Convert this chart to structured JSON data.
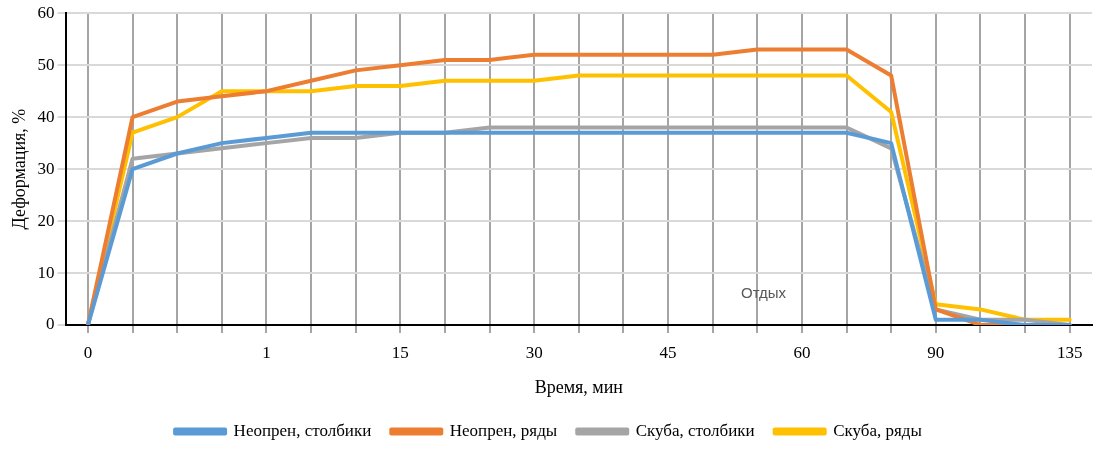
{
  "chart_data": {
    "type": "line",
    "xlabel": "Время, мин",
    "ylabel": "Деформация, %",
    "categories": [
      "0",
      null,
      null,
      null,
      "1",
      null,
      null,
      "15",
      null,
      null,
      "30",
      null,
      null,
      "45",
      null,
      null,
      "60",
      null,
      null,
      "90",
      null,
      null,
      "135"
    ],
    "series": [
      {
        "name": "Неопрен, столбики",
        "color": "#5b9bd5",
        "values": [
          0,
          30,
          33,
          35,
          36,
          37,
          37,
          37,
          37,
          37,
          37,
          37,
          37,
          37,
          37,
          37,
          37,
          37,
          35,
          1,
          1,
          0,
          0
        ]
      },
      {
        "name": "Неопрен, ряды",
        "color": "#ed7d31",
        "values": [
          0,
          40,
          43,
          44,
          45,
          47,
          49,
          50,
          51,
          51,
          52,
          52,
          52,
          52,
          52,
          53,
          53,
          53,
          48,
          3,
          0,
          0,
          0
        ]
      },
      {
        "name": "Скуба, столбики",
        "color": "#a5a5a5",
        "values": [
          0,
          32,
          33,
          34,
          35,
          36,
          36,
          37,
          37,
          38,
          38,
          38,
          38,
          38,
          38,
          38,
          38,
          38,
          34,
          3,
          1,
          1,
          0
        ]
      },
      {
        "name": "Скуба, ряды",
        "color": "#ffc000",
        "values": [
          0,
          37,
          40,
          45,
          45,
          45,
          46,
          46,
          47,
          47,
          47,
          48,
          48,
          48,
          48,
          48,
          48,
          48,
          41,
          4,
          3,
          1,
          1
        ]
      }
    ],
    "ylim": [
      0,
      60
    ],
    "yticks": [
      0,
      10,
      20,
      30,
      40,
      50,
      60
    ],
    "grid": true,
    "legend": "bottom",
    "marker": "none",
    "line_style": "solid",
    "annotations": [
      "Отдых"
    ]
  }
}
